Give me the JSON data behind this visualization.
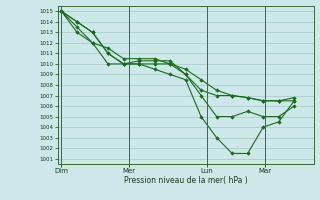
{
  "bg_color": "#cce8e8",
  "grid_color": "#aac8c8",
  "line_color": "#1a6b1a",
  "marker_color": "#1a6b1a",
  "xlabel": "Pression niveau de la mer( hPa )",
  "ylim": [
    1000.5,
    1015.5
  ],
  "yticks": [
    1001,
    1002,
    1003,
    1004,
    1005,
    1006,
    1007,
    1008,
    1009,
    1010,
    1011,
    1012,
    1013,
    1014,
    1015
  ],
  "xtick_labels": [
    "Dim",
    "Mer",
    "Lun",
    "Mar"
  ],
  "xtick_positions": [
    0,
    3.5,
    7.5,
    10.5
  ],
  "xlim": [
    -0.2,
    13.0
  ],
  "series": [
    [
      1015.0,
      1014.0,
      1013.0,
      1011.0,
      1010.0,
      1010.3,
      1010.3,
      1010.3,
      1009.0,
      1007.5,
      1007.0,
      1007.0,
      1006.8,
      1006.5,
      1006.5,
      1006.5
    ],
    [
      1015.0,
      1014.0,
      1013.0,
      1011.0,
      1010.0,
      1010.0,
      1010.0,
      1010.0,
      1009.0,
      1007.0,
      1005.0,
      1005.0,
      1005.5,
      1005.0,
      1005.0,
      1006.0
    ],
    [
      1015.0,
      1013.5,
      1012.0,
      1010.0,
      1010.0,
      1010.0,
      1009.5,
      1009.0,
      1008.5,
      1005.0,
      1003.0,
      1001.5,
      1001.5,
      1004.0,
      1004.5,
      1006.5
    ],
    [
      1015.0,
      1013.0,
      1012.0,
      1011.5,
      1010.5,
      1010.5,
      1010.5,
      1010.0,
      1009.5,
      1008.5,
      1007.5,
      1007.0,
      1006.8,
      1006.5,
      1006.5,
      1006.8
    ]
  ]
}
